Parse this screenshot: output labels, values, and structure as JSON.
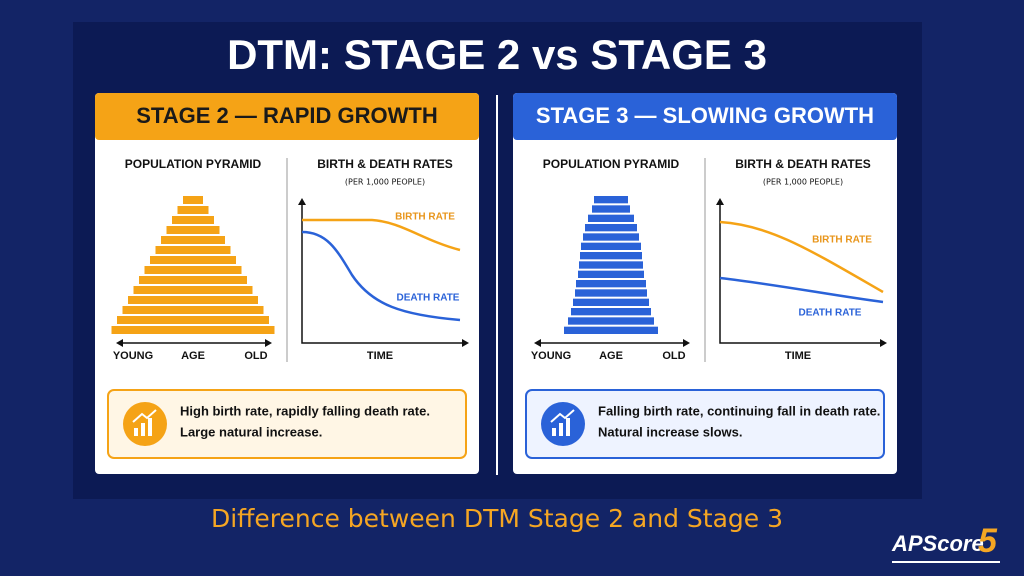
{
  "title": "DTM: STAGE 2 vs STAGE 3",
  "panels": [
    {
      "heading": "STAGE 2 — RAPID GROWTH",
      "pyramid_title": "POPULATION PYRAMID",
      "pyramid_labels": [
        "YOUNG",
        "AGE",
        "OLD"
      ],
      "rates_title": "BIRTH & DEATH RATES",
      "rates_subtitle": "(PER 1,000 PEOPLE)",
      "birth_label": "BIRTH RATE",
      "death_label": "DEATH RATE",
      "x_label": "TIME",
      "summary": [
        "High birth rate, rapidly falling death rate.",
        "Large natural increase."
      ]
    },
    {
      "heading": "STAGE 3 — SLOWING GROWTH",
      "pyramid_title": "POPULATION PYRAMID",
      "pyramid_labels": [
        "YOUNG",
        "AGE",
        "OLD"
      ],
      "rates_title": "BIRTH & DEATH RATES",
      "rates_subtitle": "(PER 1,000 PEOPLE)",
      "birth_label": "BIRTH RATE",
      "death_label": "DEATH RATE",
      "x_label": "TIME",
      "summary": [
        "Falling birth rate, continuing fall in death rate.",
        "Natural increase slows."
      ]
    }
  ],
  "caption": "Difference between DTM Stage 2 and Stage 3",
  "logo": {
    "text": "APScore",
    "number": "5"
  }
}
